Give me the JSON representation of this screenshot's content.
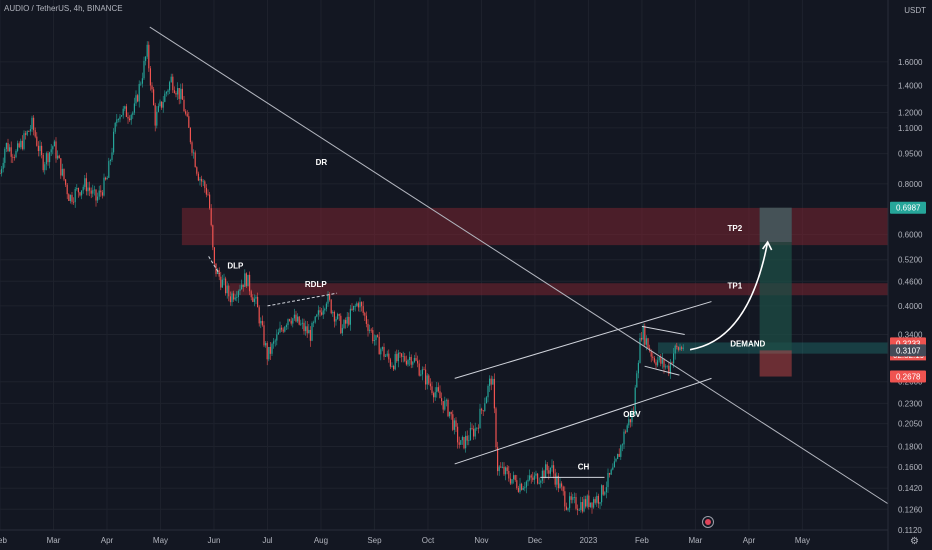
{
  "header": {
    "title": "AUDIO / TetherUS, 4h, BINANCE",
    "currency": "USDT"
  },
  "colors": {
    "background": "#131722",
    "up": "#26a69a",
    "down": "#ef5350",
    "zone": "#7a2530",
    "target": "#1d4d45"
  },
  "chart_data": {
    "type": "candlestick",
    "yaxis_scale": "log",
    "ylim": [
      0.112,
      2.1
    ],
    "y_ticks": [
      "1.6000",
      "1.4000",
      "1.2000",
      "1.1000",
      "0.9500",
      "0.8000",
      "0.6000",
      "0.5200",
      "0.4600",
      "0.4000",
      "0.3400",
      "0.2600",
      "0.2300",
      "0.2050",
      "0.1800",
      "0.1600",
      "0.1420",
      "0.1260",
      "0.1120"
    ],
    "y_tick_values": [
      1.6,
      1.4,
      1.2,
      1.1,
      0.95,
      0.8,
      0.6,
      0.52,
      0.46,
      0.4,
      0.34,
      0.26,
      0.23,
      0.205,
      0.18,
      0.16,
      0.142,
      0.126,
      0.112
    ],
    "x_ticks": [
      "Feb",
      "Mar",
      "Apr",
      "May",
      "Jun",
      "Jul",
      "Aug",
      "Sep",
      "Oct",
      "Nov",
      "Dec",
      "2023",
      "Feb",
      "Mar",
      "Apr",
      "May"
    ],
    "x_tick_months": [
      1,
      2,
      3,
      4,
      5,
      6,
      7,
      8,
      9,
      10,
      11,
      12,
      13,
      14,
      15,
      16
    ],
    "xlim_months": [
      1,
      17.6
    ],
    "price_anchors": [
      [
        1.0,
        0.85
      ],
      [
        1.1,
        1.0
      ],
      [
        1.3,
        0.95
      ],
      [
        1.6,
        1.12
      ],
      [
        1.8,
        0.9
      ],
      [
        2.0,
        1.0
      ],
      [
        2.3,
        0.74
      ],
      [
        2.6,
        0.8
      ],
      [
        2.8,
        0.73
      ],
      [
        3.0,
        0.82
      ],
      [
        3.2,
        1.2
      ],
      [
        3.5,
        1.2
      ],
      [
        3.75,
        1.7
      ],
      [
        3.9,
        1.15
      ],
      [
        4.2,
        1.45
      ],
      [
        4.4,
        1.3
      ],
      [
        4.7,
        0.85
      ],
      [
        4.9,
        0.75
      ],
      [
        5.0,
        0.5
      ],
      [
        5.3,
        0.42
      ],
      [
        5.6,
        0.47
      ],
      [
        5.8,
        0.4
      ],
      [
        6.0,
        0.3
      ],
      [
        6.4,
        0.38
      ],
      [
        6.8,
        0.34
      ],
      [
        7.1,
        0.42
      ],
      [
        7.4,
        0.35
      ],
      [
        7.7,
        0.41
      ],
      [
        8.0,
        0.33
      ],
      [
        8.3,
        0.29
      ],
      [
        8.7,
        0.3
      ],
      [
        9.0,
        0.26
      ],
      [
        9.4,
        0.22
      ],
      [
        9.6,
        0.18
      ],
      [
        9.9,
        0.2
      ],
      [
        10.2,
        0.27
      ],
      [
        10.3,
        0.16
      ],
      [
        10.7,
        0.145
      ],
      [
        11.0,
        0.15
      ],
      [
        11.3,
        0.16
      ],
      [
        11.6,
        0.13
      ],
      [
        11.9,
        0.13
      ],
      [
        12.2,
        0.135
      ],
      [
        12.5,
        0.16
      ],
      [
        12.7,
        0.2
      ],
      [
        12.85,
        0.22
      ],
      [
        12.9,
        0.28
      ],
      [
        13.0,
        0.35
      ],
      [
        13.2,
        0.3
      ],
      [
        13.5,
        0.28
      ],
      [
        13.6,
        0.31
      ],
      [
        13.8,
        0.32
      ]
    ],
    "last_price": 0.3233,
    "countdown": "02:52:19",
    "price_labels": [
      {
        "value": 0.6987,
        "text": "0.6987",
        "color": "#26a69a"
      },
      {
        "value": 0.3233,
        "text": "0.3233",
        "color": "#ef5350"
      },
      {
        "value": 0.3107,
        "text": "0.3107",
        "color": "#454a57"
      },
      {
        "value": 0.2678,
        "text": "0.2678",
        "color": "#ef5350"
      }
    ],
    "zones": [
      {
        "name": "upper-supply-zone",
        "x_from": 4.4,
        "x_to": 17.6,
        "y_low": 0.565,
        "y_high": 0.698
      },
      {
        "name": "lower-supply-zone",
        "x_from": 5.3,
        "x_to": 17.6,
        "y_low": 0.425,
        "y_high": 0.455
      },
      {
        "name": "demand-zone",
        "x_from": 13.3,
        "x_to": 17.6,
        "y_low": 0.305,
        "y_high": 0.325
      }
    ],
    "position": {
      "x_from": 15.2,
      "x_to": 15.8,
      "profit": [
        0.3107,
        0.6987
      ],
      "stop": [
        0.2678,
        0.3107
      ],
      "entry_band": [
        0.575,
        0.6987
      ]
    },
    "lines": [
      {
        "name": "dr-trendline",
        "from": [
          3.8,
          1.95
        ],
        "to": [
          17.6,
          0.13
        ],
        "color": "#b2b5be"
      },
      {
        "name": "channel-upper-line",
        "from": [
          9.5,
          0.265
        ],
        "to": [
          14.3,
          0.41
        ],
        "color": "#d1d4dc"
      },
      {
        "name": "channel-lower-line",
        "from": [
          9.5,
          0.163
        ],
        "to": [
          14.3,
          0.265
        ],
        "color": "#d1d4dc"
      },
      {
        "name": "ch-line",
        "from": [
          11.1,
          0.151
        ],
        "to": [
          12.3,
          0.151
        ],
        "color": "#d1d4dc"
      },
      {
        "name": "triangle-top-line",
        "from": [
          13.0,
          0.356
        ],
        "to": [
          13.8,
          0.34
        ],
        "color": "#d1d4dc"
      },
      {
        "name": "triangle-bottom-line",
        "from": [
          13.05,
          0.284
        ],
        "to": [
          13.7,
          0.27
        ],
        "color": "#d1d4dc"
      }
    ],
    "dashed_lines": [
      {
        "name": "dlp-dashed-line",
        "from": [
          4.9,
          0.53
        ],
        "to": [
          5.1,
          0.48
        ]
      },
      {
        "name": "rdlp-dashed-line",
        "from": [
          6.0,
          0.4
        ],
        "to": [
          7.3,
          0.43
        ]
      }
    ],
    "arrow": {
      "from": [
        13.9,
        0.312
      ],
      "control": [
        15.0,
        0.33
      ],
      "to": [
        15.35,
        0.575
      ]
    },
    "annotations": [
      {
        "name": "dr-label",
        "text": "DR",
        "x": 6.9,
        "y": 0.89
      },
      {
        "name": "dlp-label",
        "text": "DLP",
        "x": 5.25,
        "y": 0.495
      },
      {
        "name": "rdlp-label",
        "text": "RDLP",
        "x": 6.7,
        "y": 0.445
      },
      {
        "name": "tp2-label",
        "text": "TP2",
        "x": 14.6,
        "y": 0.612
      },
      {
        "name": "tp1-label",
        "text": "TP1",
        "x": 14.6,
        "y": 0.442
      },
      {
        "name": "demand-label",
        "text": "DEMAND",
        "x": 14.65,
        "y": 0.318
      },
      {
        "name": "ch-label",
        "text": "CH",
        "x": 11.8,
        "y": 0.158
      },
      {
        "name": "obv-label",
        "text": "OBV",
        "x": 12.65,
        "y": 0.213
      }
    ]
  }
}
